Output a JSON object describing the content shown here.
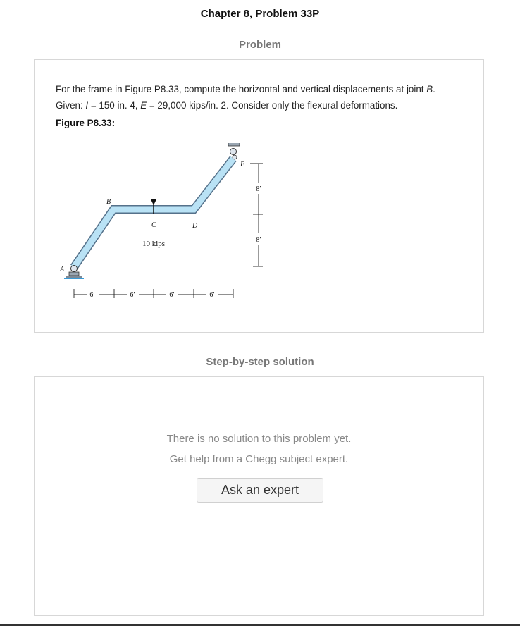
{
  "header": {
    "title": "Chapter 8, Problem 33P"
  },
  "problem_section": {
    "heading": "Problem",
    "sentence": "For the frame in Figure P8.33, compute the horizontal and vertical displacements at joint ",
    "joint": "B",
    "given_prefix": "Given: ",
    "i_symbol": "I",
    "i_value": " = 150 in. 4, ",
    "e_symbol": "E",
    "e_value": " = 29,000 kips/in. 2. Consider only the flexural deformations.",
    "figure_label": "Figure P8.33:"
  },
  "figure": {
    "load_label": "10 kips",
    "joint_labels": {
      "a": "A",
      "b": "B",
      "c": "C",
      "d": "D",
      "e": "E"
    },
    "horizontal_dims": [
      "6′",
      "6′",
      "6′",
      "6′"
    ],
    "vertical_dims": [
      "8′",
      "8′"
    ]
  },
  "solution_section": {
    "heading": "Step-by-step solution",
    "no_solution_text": "There is no solution to this problem yet.",
    "help_text": "Get help from a Chegg subject expert.",
    "ask_button_label": "Ask an expert"
  }
}
